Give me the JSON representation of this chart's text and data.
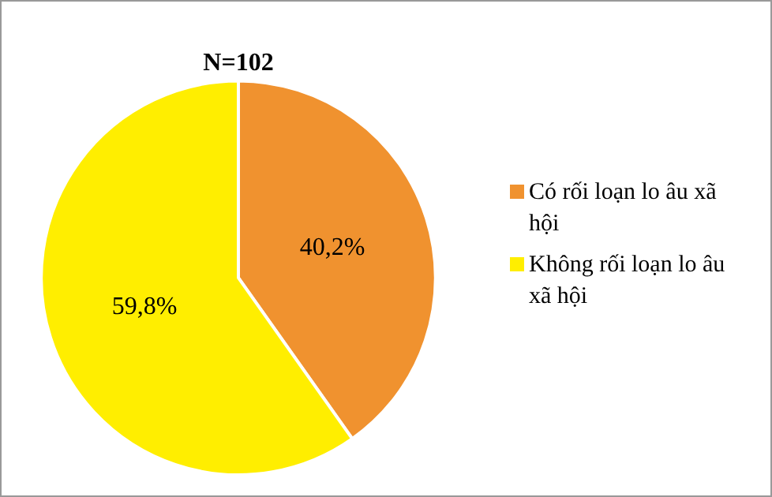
{
  "chart_data": {
    "type": "pie",
    "title": "N=102",
    "categories": [
      "Có rối loạn lo âu xã hội",
      "Không rối loạn lo âu xã hội"
    ],
    "values": [
      40.2,
      59.8
    ],
    "colors": [
      "#f0922f",
      "#ffee00"
    ],
    "value_labels": [
      "40,2%",
      "59,8%"
    ],
    "legend": "right"
  }
}
